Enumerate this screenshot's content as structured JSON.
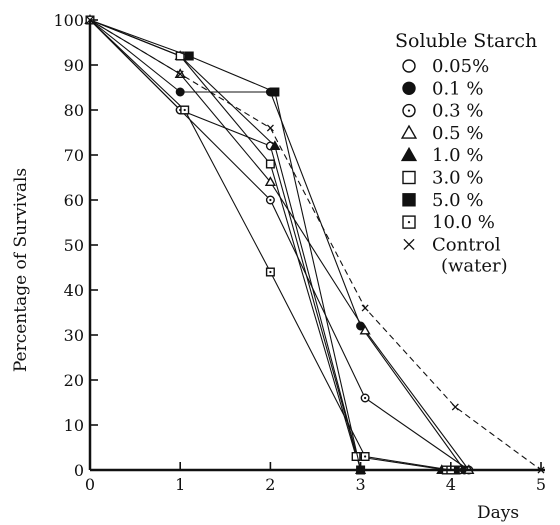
{
  "chart_data": {
    "type": "line",
    "title": "",
    "xlabel": "Days",
    "ylabel": "Percentage of Survivals",
    "xlim": [
      0,
      5
    ],
    "ylim": [
      0,
      100
    ],
    "x_ticks": [
      "0",
      "1",
      "2",
      "3",
      "4",
      "5"
    ],
    "y_ticks": [
      "0",
      "10",
      "20",
      "30",
      "40",
      "50",
      "60",
      "70",
      "80",
      "90",
      "100"
    ],
    "grid": false,
    "legend_title": "Soluble Starch",
    "legend_placement": "top-right",
    "series": [
      {
        "name": "0.05%",
        "marker": "open-circle",
        "dash": "solid",
        "points": [
          [
            0,
            100
          ],
          [
            1,
            80
          ],
          [
            2,
            72
          ],
          [
            3,
            0
          ],
          [
            4.1,
            0
          ]
        ]
      },
      {
        "name": "0.1 %",
        "marker": "filled-circle",
        "dash": "solid",
        "points": [
          [
            0,
            100
          ],
          [
            1,
            84
          ],
          [
            2,
            84
          ],
          [
            3,
            32
          ],
          [
            4.15,
            0
          ]
        ]
      },
      {
        "name": "0.3 %",
        "marker": "dotted-circle",
        "dash": "solid",
        "points": [
          [
            0,
            100
          ],
          [
            1,
            80
          ],
          [
            2,
            60
          ],
          [
            3.05,
            16
          ],
          [
            4.2,
            0
          ]
        ]
      },
      {
        "name": "0.5 %",
        "marker": "open-triangle",
        "dash": "solid",
        "points": [
          [
            0,
            100
          ],
          [
            1,
            88
          ],
          [
            2,
            64
          ],
          [
            3.05,
            31
          ],
          [
            4.2,
            0
          ]
        ]
      },
      {
        "name": "1.0 %",
        "marker": "filled-triangle",
        "dash": "solid",
        "points": [
          [
            0,
            100
          ],
          [
            1,
            92
          ],
          [
            2.05,
            72
          ],
          [
            3,
            0
          ],
          [
            3.9,
            0
          ]
        ]
      },
      {
        "name": "3.0 %",
        "marker": "open-square",
        "dash": "solid",
        "points": [
          [
            0,
            100
          ],
          [
            1,
            92
          ],
          [
            2,
            68
          ],
          [
            2.95,
            3
          ],
          [
            3.95,
            0
          ]
        ]
      },
      {
        "name": "5.0 %",
        "marker": "filled-square",
        "dash": "solid",
        "points": [
          [
            0,
            100
          ],
          [
            1.1,
            92
          ],
          [
            2.05,
            84
          ],
          [
            3,
            0
          ],
          [
            4.05,
            0
          ]
        ]
      },
      {
        "name": "10.0 %",
        "marker": "dotted-square",
        "dash": "solid",
        "points": [
          [
            0,
            100
          ],
          [
            1.05,
            80
          ],
          [
            2,
            44
          ],
          [
            3.05,
            3
          ],
          [
            4,
            0
          ]
        ]
      },
      {
        "name": "Control",
        "name_line2": "(water)",
        "marker": "cross",
        "dash": "dashed",
        "points": [
          [
            0,
            100
          ],
          [
            1,
            88
          ],
          [
            2,
            76
          ],
          [
            3.05,
            36
          ],
          [
            4.05,
            14
          ],
          [
            5,
            0
          ]
        ]
      }
    ]
  }
}
